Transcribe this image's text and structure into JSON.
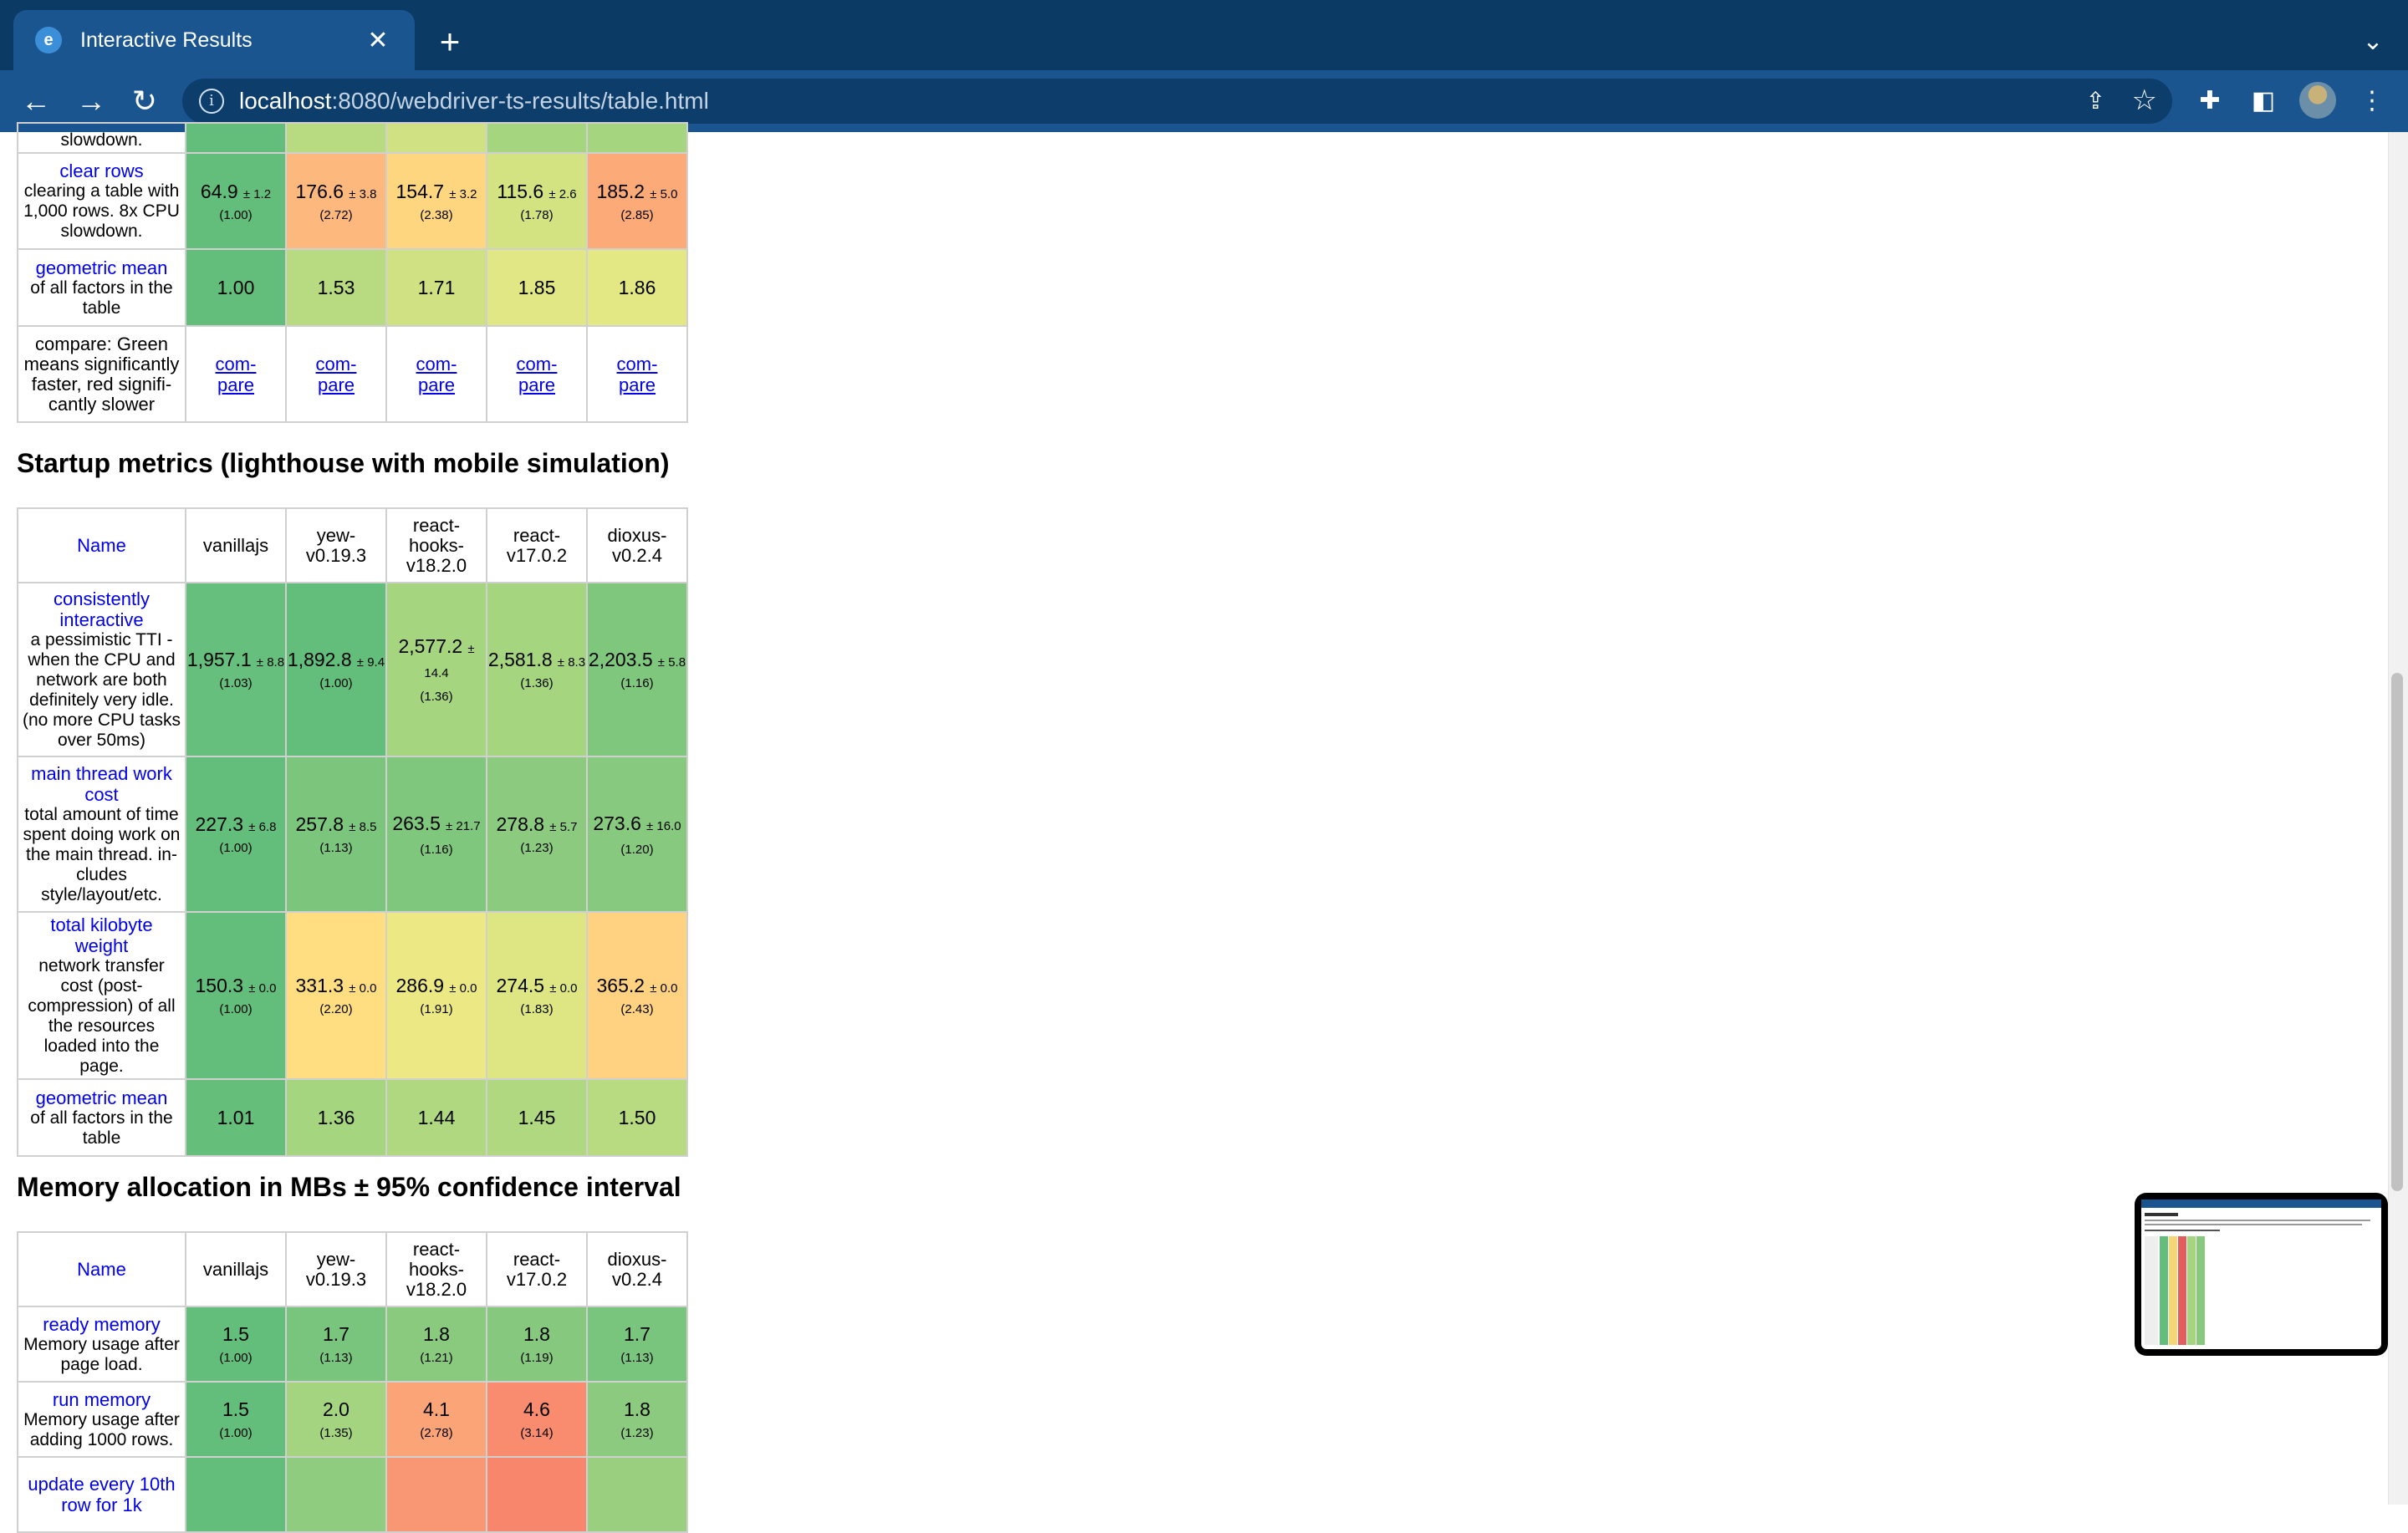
{
  "browser": {
    "tab_title": "Interactive Results",
    "url_host": "localhost",
    "url_path": ":8080/webdriver-ts-results/table.html"
  },
  "colors": {
    "chrome_dark": "#0b3a64",
    "chrome_mid": "#1a5590",
    "link": "#0000ee"
  },
  "frameworks": [
    "vanillajs",
    "yew-\nv0.19.3",
    "react-\nhooks-\nv18.2.0",
    "react-\nv17.0.2",
    "dioxus-\nv0.2.4"
  ],
  "table_top": {
    "partial_label": "slowdown.",
    "rows": [
      {
        "title": "clear rows",
        "desc": "clearing a table with 1,000 rows. 8x CPU slowdown.",
        "cells": [
          {
            "mean": "64.9",
            "ci": "± 1.2",
            "factor": "(1.00)",
            "color": "#63be7b"
          },
          {
            "mean": "176.6",
            "ci": "± 3.8",
            "factor": "(2.72)",
            "color": "#fdb97d"
          },
          {
            "mean": "154.7",
            "ci": "± 3.2",
            "factor": "(2.38)",
            "color": "#fed680"
          },
          {
            "mean": "115.6",
            "ci": "± 2.6",
            "factor": "(1.78)",
            "color": "#d4e382"
          },
          {
            "mean": "185.2",
            "ci": "± 5.0",
            "factor": "(2.85)",
            "color": "#fcaa78"
          }
        ]
      }
    ],
    "geomean": {
      "title": "geometric mean",
      "desc": "of all factors in the table",
      "values": [
        "1.00",
        "1.53",
        "1.71",
        "1.85",
        "1.86"
      ],
      "colors": [
        "#63be7b",
        "#b8da81",
        "#cfe183",
        "#e1e784",
        "#e3e884"
      ]
    },
    "compare": {
      "desc": "compare: Green means significantly faster, red signifi-cantly slower",
      "label": "com-\npare"
    }
  },
  "startup": {
    "title": "Startup metrics (lighthouse with mobile simulation)",
    "name_header": "Name",
    "rows": [
      {
        "title": "consistently interactive",
        "desc": "a pessimistic TTI - when the CPU and network are both definitely very idle. (no more CPU tasks over 50ms)",
        "cells": [
          {
            "mean": "1,957.1",
            "ci": "± 8.8",
            "factor": "(1.03)",
            "color": "#66bf7c"
          },
          {
            "mean": "1,892.8",
            "ci": "± 9.4",
            "factor": "(1.00)",
            "color": "#63be7b"
          },
          {
            "mean": "2,577.2",
            "ci": "± 14.4",
            "factor": "(1.36)",
            "color": "#a6d580"
          },
          {
            "mean": "2,581.8",
            "ci": "± 8.3",
            "factor": "(1.36)",
            "color": "#a6d580"
          },
          {
            "mean": "2,203.5",
            "ci": "± 5.8",
            "factor": "(1.16)",
            "color": "#80c77e"
          }
        ]
      },
      {
        "title": "main thread work cost",
        "desc": "total amount of time spent doing work on the main thread. in-cludes style/layout/etc.",
        "cells": [
          {
            "mean": "227.3",
            "ci": "± 6.8",
            "factor": "(1.00)",
            "color": "#63be7b"
          },
          {
            "mean": "257.8",
            "ci": "± 8.5",
            "factor": "(1.13)",
            "color": "#7bc57d"
          },
          {
            "mean": "263.5",
            "ci": "± 21.7",
            "factor": "(1.16)",
            "color": "#80c77e"
          },
          {
            "mean": "278.8",
            "ci": "± 5.7",
            "factor": "(1.23)",
            "color": "#8ccb7f"
          },
          {
            "mean": "273.6",
            "ci": "± 16.0",
            "factor": "(1.20)",
            "color": "#87c97e"
          }
        ]
      },
      {
        "title": "total kilobyte weight",
        "desc": "network transfer cost (post-compression) of all the resources loaded into the page.",
        "cells": [
          {
            "mean": "150.3",
            "ci": "± 0.0",
            "factor": "(1.00)",
            "color": "#63be7b"
          },
          {
            "mean": "331.3",
            "ci": "± 0.0",
            "factor": "(2.20)",
            "color": "#fede81"
          },
          {
            "mean": "286.9",
            "ci": "± 0.0",
            "factor": "(1.91)",
            "color": "#ece984"
          },
          {
            "mean": "274.5",
            "ci": "± 0.0",
            "factor": "(1.83)",
            "color": "#dde683"
          },
          {
            "mean": "365.2",
            "ci": "± 0.0",
            "factor": "(2.43)",
            "color": "#fed280"
          }
        ]
      }
    ],
    "geomean": {
      "title": "geometric mean",
      "desc": "of all factors in the table",
      "values": [
        "1.01",
        "1.36",
        "1.44",
        "1.45",
        "1.50"
      ],
      "colors": [
        "#65bf7b",
        "#a6d580",
        "#afd881",
        "#b0d881",
        "#b8da81"
      ]
    }
  },
  "memory": {
    "title": "Memory allocation in MBs ± 95% confidence interval",
    "name_header": "Name",
    "rows": [
      {
        "title": "ready memory",
        "desc": "Memory usage after page load.",
        "cells": [
          {
            "mean": "1.5",
            "factor": "(1.00)",
            "color": "#63be7b"
          },
          {
            "mean": "1.7",
            "factor": "(1.13)",
            "color": "#7ac57d"
          },
          {
            "mean": "1.8",
            "factor": "(1.21)",
            "color": "#89ca7e"
          },
          {
            "mean": "1.8",
            "factor": "(1.19)",
            "color": "#86c97e"
          },
          {
            "mean": "1.7",
            "factor": "(1.13)",
            "color": "#7ac57d"
          }
        ]
      },
      {
        "title": "run memory",
        "desc": "Memory usage after adding 1000 rows.",
        "cells": [
          {
            "mean": "1.5",
            "factor": "(1.00)",
            "color": "#63be7b"
          },
          {
            "mean": "2.0",
            "factor": "(1.35)",
            "color": "#a4d480"
          },
          {
            "mean": "4.1",
            "factor": "(2.78)",
            "color": "#fba477"
          },
          {
            "mean": "4.6",
            "factor": "(3.14)",
            "color": "#f98b6f"
          },
          {
            "mean": "1.8",
            "factor": "(1.23)",
            "color": "#8ccb7f"
          }
        ]
      },
      {
        "title": "update every 10th row for 1k",
        "desc": "",
        "cells": [
          {
            "mean": "",
            "factor": "",
            "color": "#63be7b"
          },
          {
            "mean": "",
            "factor": "",
            "color": "#8fcc7f"
          },
          {
            "mean": "",
            "factor": "",
            "color": "#f99673"
          },
          {
            "mean": "",
            "factor": "",
            "color": "#f8866d"
          },
          {
            "mean": "",
            "factor": "",
            "color": "#99cf7f"
          }
        ]
      }
    ]
  }
}
